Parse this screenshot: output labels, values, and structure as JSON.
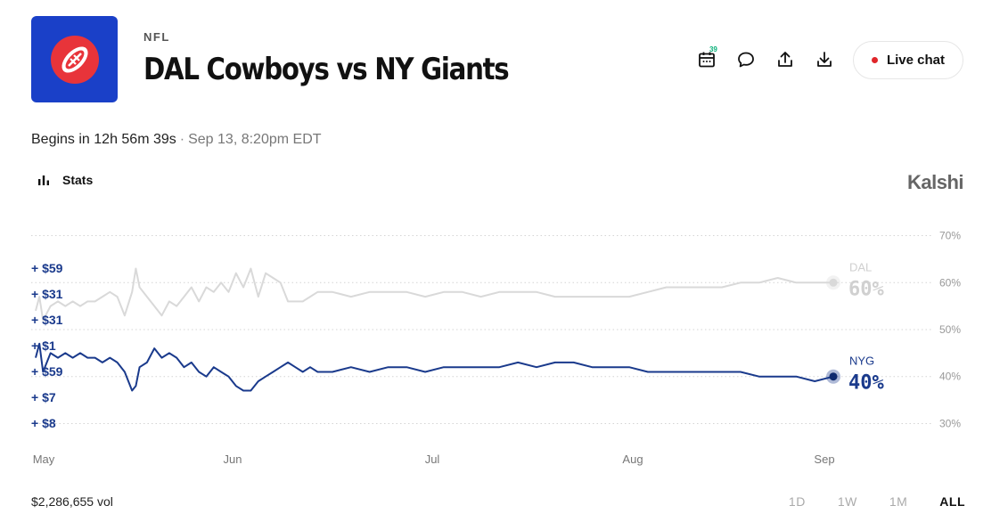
{
  "header": {
    "category": "NFL",
    "title": "DAL Cowboys vs NY Giants",
    "calendar_badge": "39",
    "live_chat_label": "Live chat"
  },
  "status": {
    "begins_text": "Begins in 12h 56m 39s",
    "separator": "·",
    "date_text": "Sep 13, 8:20pm EDT"
  },
  "stats_label": "Stats",
  "brand": "Kalshi",
  "volume": "$2,286,655 vol",
  "ranges": [
    "1D",
    "1W",
    "1M",
    "ALL"
  ],
  "active_range": "ALL",
  "colors": {
    "logo_bg": "#1a40c8",
    "nyg": "#1a3a8c",
    "dal": "#d9d9d9",
    "live_dot": "#e0262a",
    "badge": "#0bb07a"
  },
  "trade_ticker": [
    "+ $59",
    "+ $31",
    "+ $31",
    "+ $1",
    "+ $59",
    "+ $7",
    "+ $8"
  ],
  "chart_data": {
    "type": "line",
    "x_ticks": [
      "May",
      "Jun",
      "Jul",
      "Aug",
      "Sep"
    ],
    "y_ticks": [
      "70%",
      "60%",
      "50%",
      "40%",
      "30%"
    ],
    "ylim": [
      28,
      72
    ],
    "grid": true,
    "series": [
      {
        "name": "DAL",
        "end_label": "60%",
        "points": [
          [
            0,
            54
          ],
          [
            1,
            57
          ],
          [
            2,
            52
          ],
          [
            4,
            55
          ],
          [
            6,
            56
          ],
          [
            8,
            55
          ],
          [
            10,
            56
          ],
          [
            12,
            55
          ],
          [
            14,
            56
          ],
          [
            16,
            56
          ],
          [
            18,
            57
          ],
          [
            20,
            58
          ],
          [
            22,
            57
          ],
          [
            24,
            53
          ],
          [
            26,
            58
          ],
          [
            27,
            63
          ],
          [
            28,
            59
          ],
          [
            30,
            57
          ],
          [
            32,
            55
          ],
          [
            34,
            53
          ],
          [
            36,
            56
          ],
          [
            38,
            55
          ],
          [
            40,
            57
          ],
          [
            42,
            59
          ],
          [
            44,
            56
          ],
          [
            46,
            59
          ],
          [
            48,
            58
          ],
          [
            50,
            60
          ],
          [
            52,
            58
          ],
          [
            54,
            62
          ],
          [
            56,
            59
          ],
          [
            58,
            63
          ],
          [
            60,
            57
          ],
          [
            62,
            62
          ],
          [
            64,
            61
          ],
          [
            66,
            60
          ],
          [
            68,
            56
          ],
          [
            70,
            56
          ],
          [
            72,
            56
          ],
          [
            74,
            57
          ],
          [
            76,
            58
          ],
          [
            80,
            58
          ],
          [
            85,
            57
          ],
          [
            90,
            58
          ],
          [
            95,
            58
          ],
          [
            100,
            58
          ],
          [
            105,
            57
          ],
          [
            110,
            58
          ],
          [
            115,
            58
          ],
          [
            120,
            57
          ],
          [
            125,
            58
          ],
          [
            130,
            58
          ],
          [
            135,
            58
          ],
          [
            140,
            57
          ],
          [
            145,
            57
          ],
          [
            150,
            57
          ],
          [
            155,
            57
          ],
          [
            160,
            57
          ],
          [
            165,
            58
          ],
          [
            170,
            59
          ],
          [
            175,
            59
          ],
          [
            180,
            59
          ],
          [
            185,
            59
          ],
          [
            190,
            60
          ],
          [
            195,
            60
          ],
          [
            200,
            61
          ],
          [
            205,
            60
          ],
          [
            210,
            60
          ],
          [
            215,
            60
          ]
        ]
      },
      {
        "name": "NYG",
        "end_label": "40%",
        "points": [
          [
            0,
            44
          ],
          [
            1,
            47
          ],
          [
            2,
            41
          ],
          [
            4,
            45
          ],
          [
            6,
            44
          ],
          [
            8,
            45
          ],
          [
            10,
            44
          ],
          [
            12,
            45
          ],
          [
            14,
            44
          ],
          [
            16,
            44
          ],
          [
            18,
            43
          ],
          [
            20,
            44
          ],
          [
            22,
            43
          ],
          [
            24,
            41
          ],
          [
            26,
            37
          ],
          [
            27,
            38
          ],
          [
            28,
            42
          ],
          [
            30,
            43
          ],
          [
            32,
            46
          ],
          [
            34,
            44
          ],
          [
            36,
            45
          ],
          [
            38,
            44
          ],
          [
            40,
            42
          ],
          [
            42,
            43
          ],
          [
            44,
            41
          ],
          [
            46,
            40
          ],
          [
            48,
            42
          ],
          [
            50,
            41
          ],
          [
            52,
            40
          ],
          [
            54,
            38
          ],
          [
            56,
            37
          ],
          [
            58,
            37
          ],
          [
            60,
            39
          ],
          [
            62,
            40
          ],
          [
            64,
            41
          ],
          [
            66,
            42
          ],
          [
            68,
            43
          ],
          [
            70,
            42
          ],
          [
            72,
            41
          ],
          [
            74,
            42
          ],
          [
            76,
            41
          ],
          [
            80,
            41
          ],
          [
            85,
            42
          ],
          [
            90,
            41
          ],
          [
            95,
            42
          ],
          [
            100,
            42
          ],
          [
            105,
            41
          ],
          [
            110,
            42
          ],
          [
            115,
            42
          ],
          [
            120,
            42
          ],
          [
            125,
            42
          ],
          [
            130,
            43
          ],
          [
            135,
            42
          ],
          [
            140,
            43
          ],
          [
            145,
            43
          ],
          [
            150,
            42
          ],
          [
            155,
            42
          ],
          [
            160,
            42
          ],
          [
            165,
            41
          ],
          [
            170,
            41
          ],
          [
            175,
            41
          ],
          [
            180,
            41
          ],
          [
            185,
            41
          ],
          [
            190,
            41
          ],
          [
            195,
            40
          ],
          [
            200,
            40
          ],
          [
            205,
            40
          ],
          [
            210,
            39
          ],
          [
            215,
            40
          ]
        ]
      }
    ]
  }
}
